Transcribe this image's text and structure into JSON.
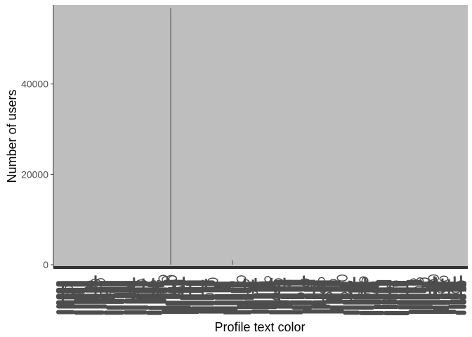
{
  "chart_data": {
    "type": "bar",
    "xlabel": "Profile text color",
    "ylabel": "Number of users",
    "ylim": [
      -450,
      57500
    ],
    "yticks": [
      0,
      20000,
      40000
    ],
    "ytick_labels": [
      "0",
      "20000",
      "40000"
    ],
    "category_count": 2800,
    "notable_bars": [
      {
        "position": 0.283,
        "value": 56800
      },
      {
        "position": 0.432,
        "value": 1000
      }
    ],
    "x_tick_labels_overplotted": true,
    "legend": "none",
    "grid": false
  },
  "colors": {
    "panel_fill": "#bebebe",
    "bar_fill": "#4d4d4d",
    "axis_line": "#333333",
    "tick_label": "#4d4d4d"
  }
}
